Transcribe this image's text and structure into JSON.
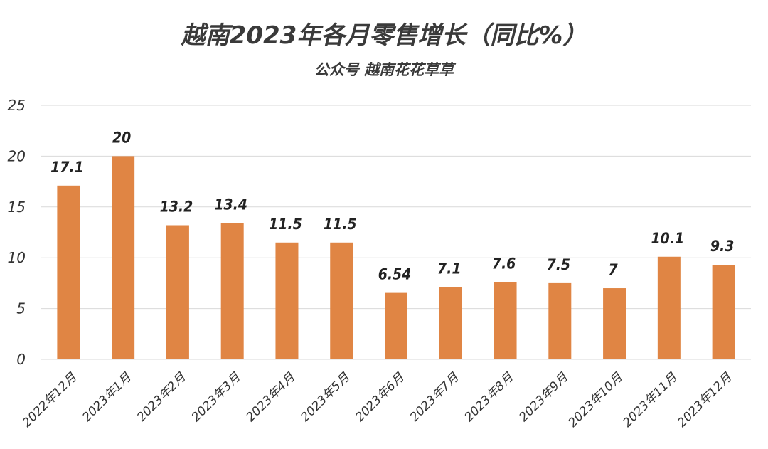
{
  "chart_data": {
    "type": "bar",
    "title": "越南2023年各月零售增长（同比%）",
    "subtitle": "公众号 越南花花草草",
    "xlabel": "",
    "ylabel": "",
    "ylim": [
      0,
      25
    ],
    "yticks": [
      0,
      5,
      10,
      15,
      20,
      25
    ],
    "grid": true,
    "legend": "none",
    "bar_color": "#e08544",
    "categories": [
      "2022年12月",
      "2023年1月",
      "2023年2月",
      "2023年3月",
      "2023年4月",
      "2023年5月",
      "2023年6月",
      "2023年7月",
      "2023年8月",
      "2023年9月",
      "2023年10月",
      "2023年11月",
      "2023年12月"
    ],
    "values": [
      17.1,
      20,
      13.2,
      13.4,
      11.5,
      11.5,
      6.54,
      7.1,
      7.6,
      7.5,
      7,
      10.1,
      9.3
    ]
  }
}
